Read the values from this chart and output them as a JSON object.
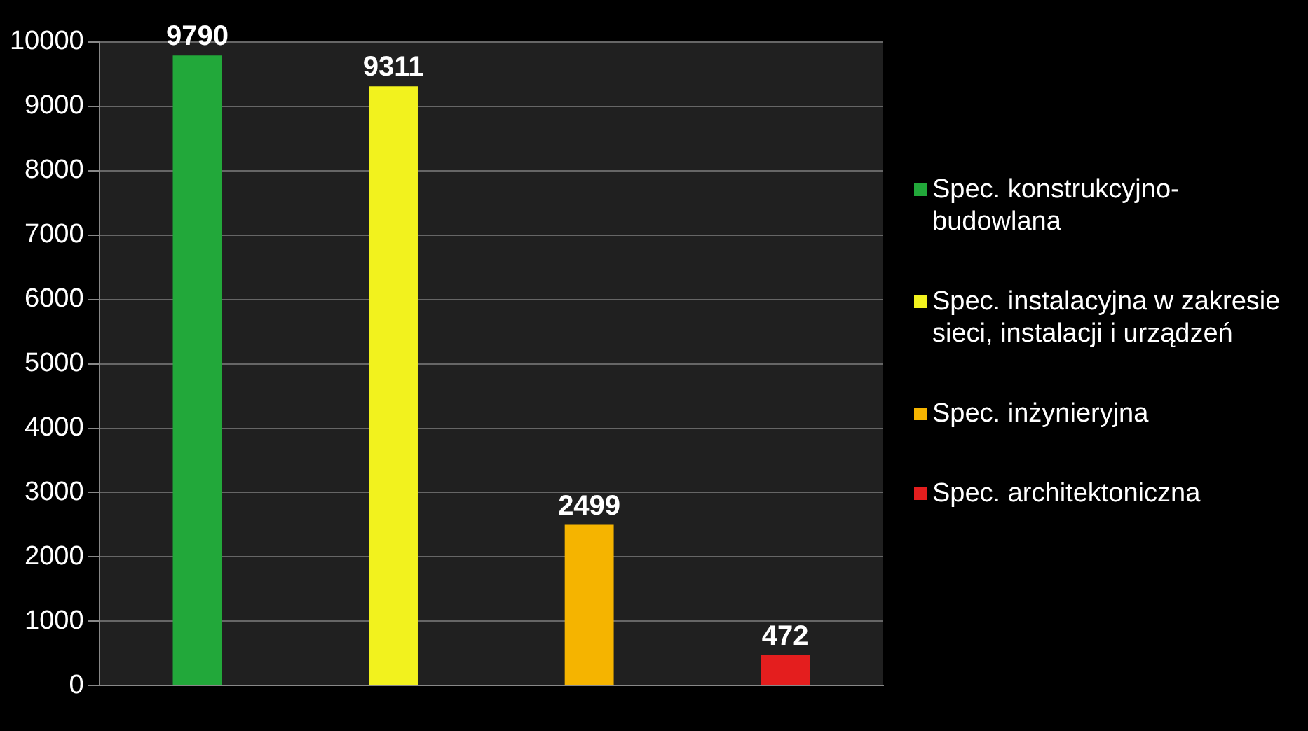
{
  "chart_data": {
    "type": "bar",
    "categories": [
      null,
      null,
      null,
      null
    ],
    "series": [
      {
        "name": "Spec. konstrukcyjno-budowlana",
        "color": "#22a83a",
        "values": [
          9790,
          null,
          null,
          null
        ]
      },
      {
        "name": "Spec. instalacyjna w zakresie sieci, instalacji i urządzeń",
        "color": "#f2f21e",
        "values": [
          null,
          9311,
          null,
          null
        ]
      },
      {
        "name": "Spec. inżynieryjna",
        "color": "#f5b400",
        "values": [
          null,
          null,
          2499,
          null
        ]
      },
      {
        "name": "Spec. architektoniczna",
        "color": "#e41e1e",
        "values": [
          null,
          null,
          null,
          472
        ]
      }
    ],
    "ylim": [
      0,
      10000
    ],
    "yticks": [
      0,
      1000,
      2000,
      3000,
      4000,
      5000,
      6000,
      7000,
      8000,
      9000,
      10000
    ],
    "grid": "y",
    "legend": "right",
    "data_labels": true
  }
}
